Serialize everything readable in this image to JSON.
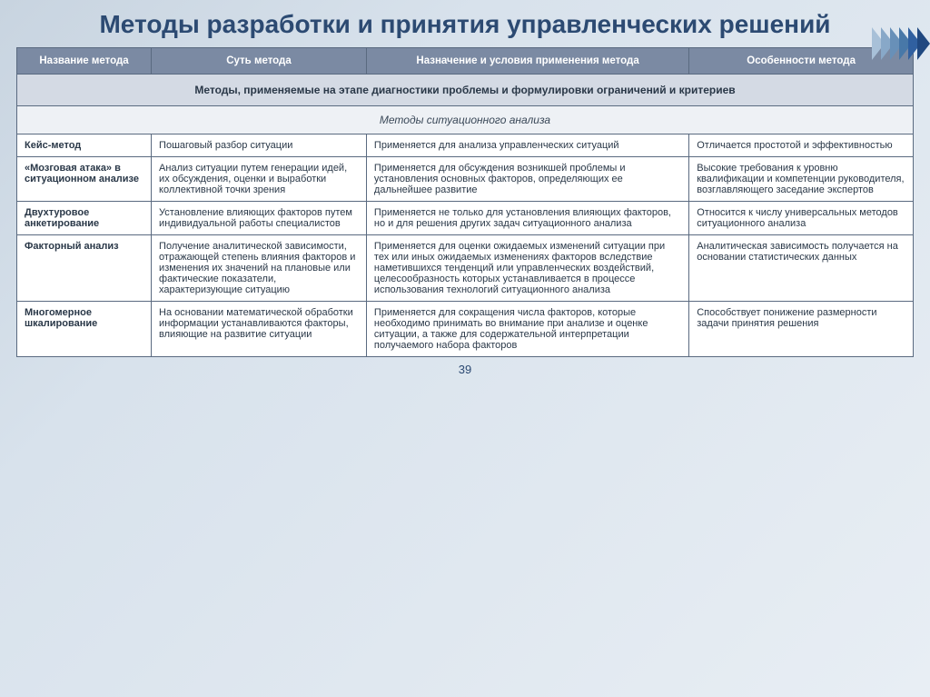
{
  "title": "Методы разработки и принятия управленческих решений",
  "page_number": "39",
  "chevron_colors": [
    "#a8c0d8",
    "#88a8c8",
    "#6890b8",
    "#4878a8",
    "#3060a0",
    "#204880"
  ],
  "columns": [
    "Название метода",
    "Суть метода",
    "Назначение и условия применения метода",
    "Особенности метода"
  ],
  "section_header": "Методы, применяемые на этапе диагностики проблемы и формулировки ограничений и критериев",
  "subsection_header": "Методы ситуационного анализа",
  "rows": [
    {
      "name": "Кейс-метод",
      "essence": "Пошаговый разбор ситуации",
      "usage": "Применяется для анализа управленческих ситуаций",
      "features": "Отличается простотой и эффективностью"
    },
    {
      "name": "«Мозговая атака» в ситуационном анализе",
      "essence": "Анализ ситуации путем генерации идей, их обсуждения, оценки и выработки коллективной точки зрения",
      "usage": "Применяется для обсуждения возникшей проблемы и установления основных факторов, определяющих ее дальнейшее развитие",
      "features": "Высокие требования к уровню квалификации и компетенции руководителя, возглавляющего заседание экспертов"
    },
    {
      "name": "Двухтуровое анкетирование",
      "essence": "Установление влияющих факторов путем индивидуальной работы специалистов",
      "usage": "Применяется не только для установления влияющих факторов, но и для решения  других задач ситуационного анализа",
      "features": "Относится к числу универсальных методов ситуационного анализа"
    },
    {
      "name": "Факторный анализ",
      "essence": "Получение аналитической зависимости, отражающей степень влияния факторов и изменения их значений на плановые или фактические показатели, характеризующие ситуацию",
      "usage": "Применяется для оценки ожидаемых изменений ситуации при тех или иных ожидаемых изменениях  факторов вследствие наметившихся тенденций или управленческих воздействий, целесообразность которых устанавливается в процессе использования технологий ситуационного анализа",
      "features": "Аналитическая зависимость получается на основании статистических данных"
    },
    {
      "name": "Многомерное шкалирование",
      "essence": "На основании математической обработки информации устанавливаются факторы, влияющие на развитие ситуации",
      "usage": "Применяется для сокращения числа факторов, которые необходимо принимать во внимание при анализе  и оценке ситуации, а также для содержательной интерпретации получаемого набора факторов",
      "features": "Способствует понижение размерности задачи принятия решения"
    }
  ],
  "styling": {
    "title_color": "#2c4a72",
    "title_fontsize": 28,
    "header_bg": "#7b8aa3",
    "header_fg": "#ffffff",
    "section_bg": "#d4dae4",
    "subsection_bg": "#eef1f5",
    "border_color": "#5a6a80",
    "body_fontsize": 11,
    "col_widths_pct": [
      15,
      24,
      36,
      25
    ]
  }
}
